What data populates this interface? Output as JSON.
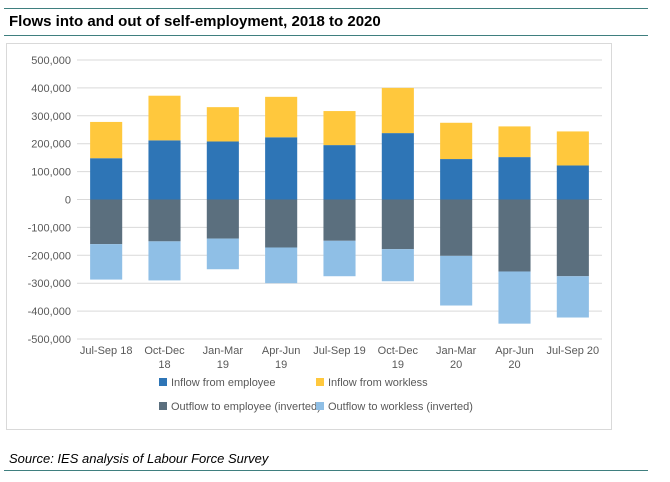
{
  "title": "Flows into and out of self-employment, 2018 to 2020",
  "source": "Source: IES analysis of Labour Force Survey",
  "chart_data": {
    "type": "bar",
    "stacked": true,
    "categories": [
      [
        "Jul-Sep 18"
      ],
      [
        "Oct-Dec",
        "18"
      ],
      [
        "Jan-Mar",
        "19"
      ],
      [
        "Apr-Jun",
        "19"
      ],
      [
        "Jul-Sep 19"
      ],
      [
        "Oct-Dec",
        "19"
      ],
      [
        "Jan-Mar",
        "20"
      ],
      [
        "Apr-Jun",
        "20"
      ],
      [
        "Jul-Sep 20"
      ]
    ],
    "series": [
      {
        "name": "Inflow from employee",
        "color": "#2e75b6",
        "values": [
          148000,
          212000,
          208000,
          223000,
          195000,
          238000,
          145000,
          152000,
          122000
        ]
      },
      {
        "name": "Inflow from workless",
        "color": "#ffc83d",
        "values": [
          130000,
          160000,
          123000,
          145000,
          122000,
          162000,
          130000,
          110000,
          122000
        ]
      },
      {
        "name": "Outflow to employee (inverted)",
        "color": "#5b6f7e",
        "values": [
          -160000,
          -150000,
          -140000,
          -172000,
          -148000,
          -178000,
          -202000,
          -258000,
          -275000
        ]
      },
      {
        "name": "Outflow to workless (inverted)",
        "color": "#8fbfe6",
        "values": [
          -127000,
          -140000,
          -110000,
          -128000,
          -127000,
          -115000,
          -178000,
          -187000,
          -148000
        ]
      }
    ],
    "yticks": [
      "500,000",
      "400,000",
      "300,000",
      "200,000",
      "100,000",
      "0",
      "-100,000",
      "-200,000",
      "-300,000",
      "-400,000",
      "-500,000"
    ],
    "ylim": [
      -500000,
      500000
    ],
    "grid": true,
    "legend_position": "bottom"
  }
}
